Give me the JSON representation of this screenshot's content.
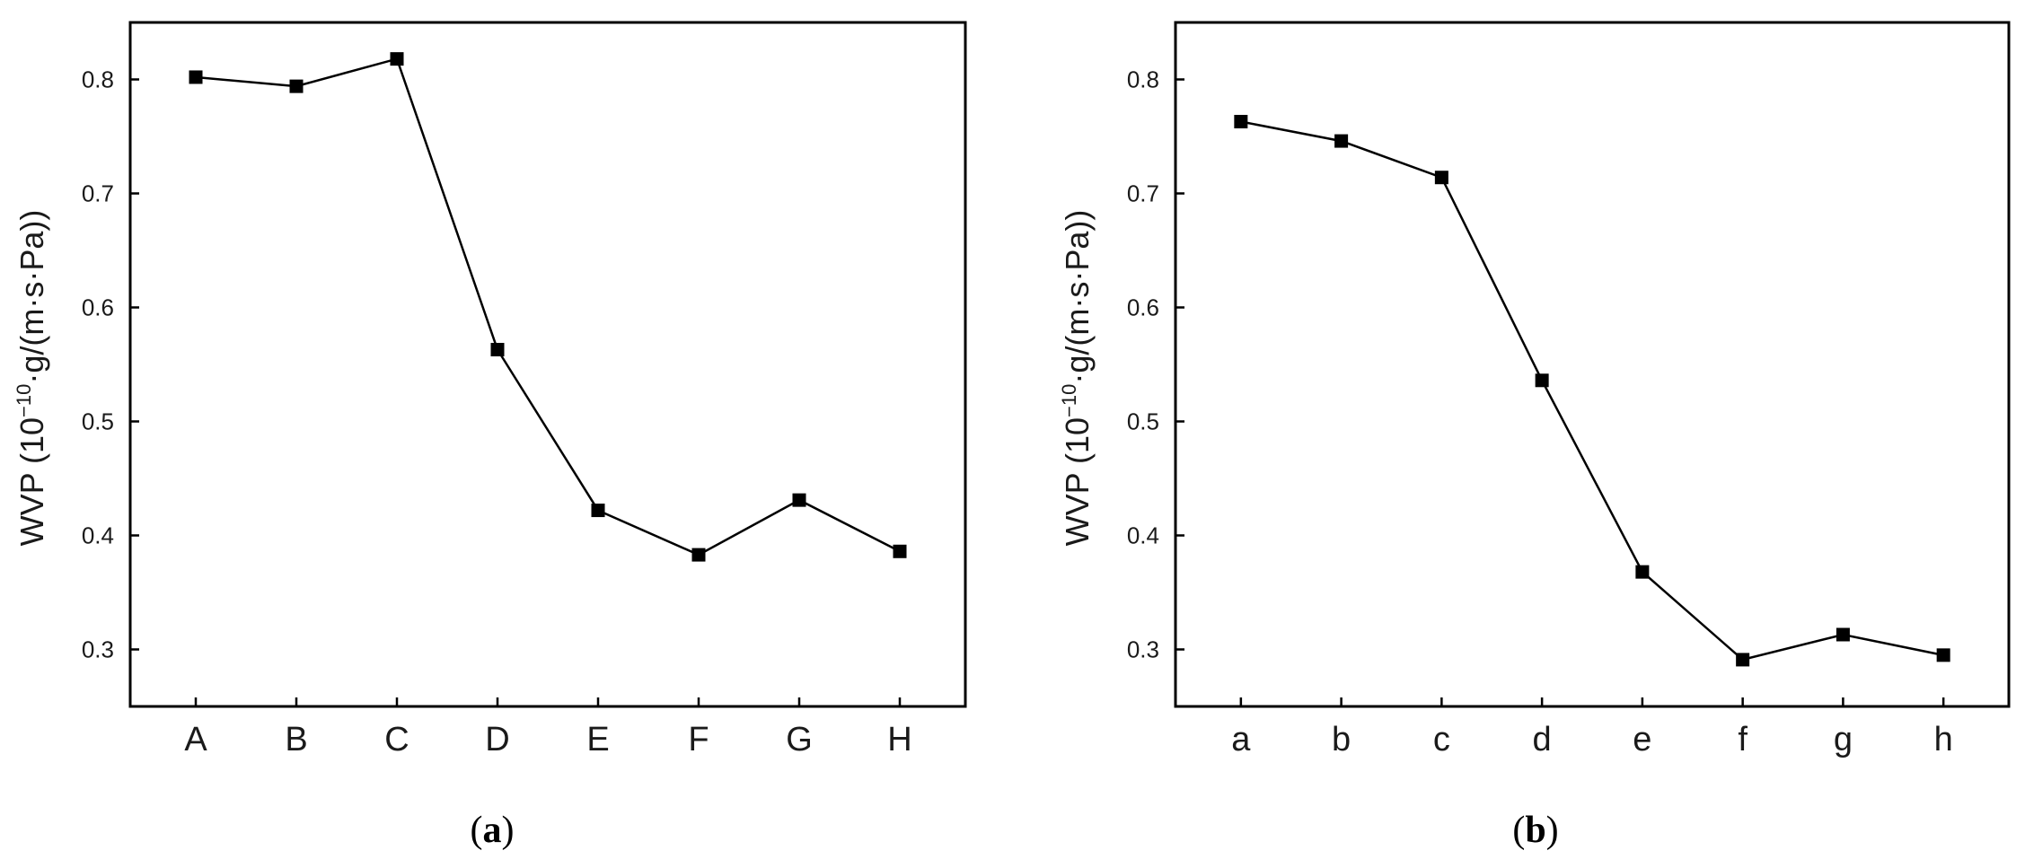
{
  "chart_data": [
    {
      "type": "line",
      "panel_label": "a",
      "ylabel": {
        "prefix": "WVP (10",
        "superscript": "−10",
        "suffix": "·g/(m·s·Pa))"
      },
      "xlabel": "",
      "categories": [
        "A",
        "B",
        "C",
        "D",
        "E",
        "F",
        "G",
        "H"
      ],
      "series": [
        {
          "values": [
            0.802,
            0.794,
            0.818,
            0.563,
            0.422,
            0.383,
            0.431,
            0.386
          ]
        }
      ],
      "ylim": [
        0.25,
        0.85
      ],
      "yticks": [
        "0.3",
        "0.4",
        "0.5",
        "0.6",
        "0.7",
        "0.8"
      ],
      "marker": "square",
      "color": "#000000",
      "grid": false
    },
    {
      "type": "line",
      "panel_label": "b",
      "ylabel": {
        "prefix": "WVP (10",
        "superscript": "−10",
        "suffix": "·g/(m·s·Pa))"
      },
      "xlabel": "",
      "categories": [
        "a",
        "b",
        "c",
        "d",
        "e",
        "f",
        "g",
        "h"
      ],
      "series": [
        {
          "values": [
            0.763,
            0.746,
            0.714,
            0.536,
            0.368,
            0.291,
            0.313,
            0.295
          ]
        }
      ],
      "ylim": [
        0.25,
        0.85
      ],
      "yticks": [
        "0.3",
        "0.4",
        "0.5",
        "0.6",
        "0.7",
        "0.8"
      ],
      "marker": "square",
      "color": "#000000",
      "grid": false
    }
  ]
}
